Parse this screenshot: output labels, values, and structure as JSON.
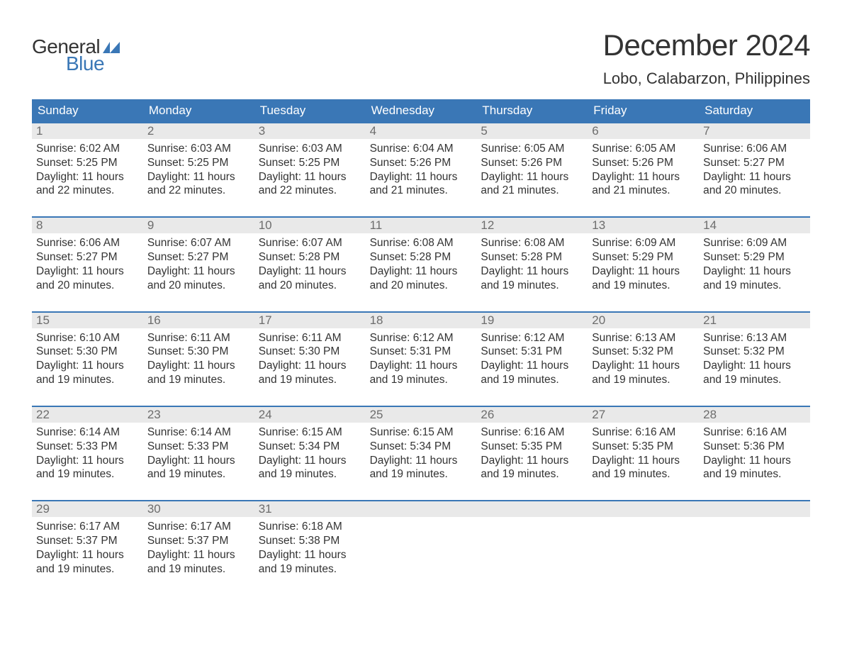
{
  "logo": {
    "text_top": "General",
    "text_bottom": "Blue",
    "flag_color": "#3a77b6"
  },
  "title": "December 2024",
  "location": "Lobo, Calabarzon, Philippines",
  "colors": {
    "header_bg": "#3a77b6",
    "daynum_bg": "#e9e9e9",
    "week_border": "#3a77b6",
    "text": "#333333",
    "daynum_text": "#6d6d6d"
  },
  "days_of_week": [
    "Sunday",
    "Monday",
    "Tuesday",
    "Wednesday",
    "Thursday",
    "Friday",
    "Saturday"
  ],
  "weeks": [
    [
      {
        "n": "1",
        "sunrise": "6:02 AM",
        "sunset": "5:25 PM",
        "daylight": "11 hours and 22 minutes."
      },
      {
        "n": "2",
        "sunrise": "6:03 AM",
        "sunset": "5:25 PM",
        "daylight": "11 hours and 22 minutes."
      },
      {
        "n": "3",
        "sunrise": "6:03 AM",
        "sunset": "5:25 PM",
        "daylight": "11 hours and 22 minutes."
      },
      {
        "n": "4",
        "sunrise": "6:04 AM",
        "sunset": "5:26 PM",
        "daylight": "11 hours and 21 minutes."
      },
      {
        "n": "5",
        "sunrise": "6:05 AM",
        "sunset": "5:26 PM",
        "daylight": "11 hours and 21 minutes."
      },
      {
        "n": "6",
        "sunrise": "6:05 AM",
        "sunset": "5:26 PM",
        "daylight": "11 hours and 21 minutes."
      },
      {
        "n": "7",
        "sunrise": "6:06 AM",
        "sunset": "5:27 PM",
        "daylight": "11 hours and 20 minutes."
      }
    ],
    [
      {
        "n": "8",
        "sunrise": "6:06 AM",
        "sunset": "5:27 PM",
        "daylight": "11 hours and 20 minutes."
      },
      {
        "n": "9",
        "sunrise": "6:07 AM",
        "sunset": "5:27 PM",
        "daylight": "11 hours and 20 minutes."
      },
      {
        "n": "10",
        "sunrise": "6:07 AM",
        "sunset": "5:28 PM",
        "daylight": "11 hours and 20 minutes."
      },
      {
        "n": "11",
        "sunrise": "6:08 AM",
        "sunset": "5:28 PM",
        "daylight": "11 hours and 20 minutes."
      },
      {
        "n": "12",
        "sunrise": "6:08 AM",
        "sunset": "5:28 PM",
        "daylight": "11 hours and 19 minutes."
      },
      {
        "n": "13",
        "sunrise": "6:09 AM",
        "sunset": "5:29 PM",
        "daylight": "11 hours and 19 minutes."
      },
      {
        "n": "14",
        "sunrise": "6:09 AM",
        "sunset": "5:29 PM",
        "daylight": "11 hours and 19 minutes."
      }
    ],
    [
      {
        "n": "15",
        "sunrise": "6:10 AM",
        "sunset": "5:30 PM",
        "daylight": "11 hours and 19 minutes."
      },
      {
        "n": "16",
        "sunrise": "6:11 AM",
        "sunset": "5:30 PM",
        "daylight": "11 hours and 19 minutes."
      },
      {
        "n": "17",
        "sunrise": "6:11 AM",
        "sunset": "5:30 PM",
        "daylight": "11 hours and 19 minutes."
      },
      {
        "n": "18",
        "sunrise": "6:12 AM",
        "sunset": "5:31 PM",
        "daylight": "11 hours and 19 minutes."
      },
      {
        "n": "19",
        "sunrise": "6:12 AM",
        "sunset": "5:31 PM",
        "daylight": "11 hours and 19 minutes."
      },
      {
        "n": "20",
        "sunrise": "6:13 AM",
        "sunset": "5:32 PM",
        "daylight": "11 hours and 19 minutes."
      },
      {
        "n": "21",
        "sunrise": "6:13 AM",
        "sunset": "5:32 PM",
        "daylight": "11 hours and 19 minutes."
      }
    ],
    [
      {
        "n": "22",
        "sunrise": "6:14 AM",
        "sunset": "5:33 PM",
        "daylight": "11 hours and 19 minutes."
      },
      {
        "n": "23",
        "sunrise": "6:14 AM",
        "sunset": "5:33 PM",
        "daylight": "11 hours and 19 minutes."
      },
      {
        "n": "24",
        "sunrise": "6:15 AM",
        "sunset": "5:34 PM",
        "daylight": "11 hours and 19 minutes."
      },
      {
        "n": "25",
        "sunrise": "6:15 AM",
        "sunset": "5:34 PM",
        "daylight": "11 hours and 19 minutes."
      },
      {
        "n": "26",
        "sunrise": "6:16 AM",
        "sunset": "5:35 PM",
        "daylight": "11 hours and 19 minutes."
      },
      {
        "n": "27",
        "sunrise": "6:16 AM",
        "sunset": "5:35 PM",
        "daylight": "11 hours and 19 minutes."
      },
      {
        "n": "28",
        "sunrise": "6:16 AM",
        "sunset": "5:36 PM",
        "daylight": "11 hours and 19 minutes."
      }
    ],
    [
      {
        "n": "29",
        "sunrise": "6:17 AM",
        "sunset": "5:37 PM",
        "daylight": "11 hours and 19 minutes."
      },
      {
        "n": "30",
        "sunrise": "6:17 AM",
        "sunset": "5:37 PM",
        "daylight": "11 hours and 19 minutes."
      },
      {
        "n": "31",
        "sunrise": "6:18 AM",
        "sunset": "5:38 PM",
        "daylight": "11 hours and 19 minutes."
      },
      null,
      null,
      null,
      null
    ]
  ],
  "labels": {
    "sunrise": "Sunrise:",
    "sunset": "Sunset:",
    "daylight": "Daylight:"
  }
}
